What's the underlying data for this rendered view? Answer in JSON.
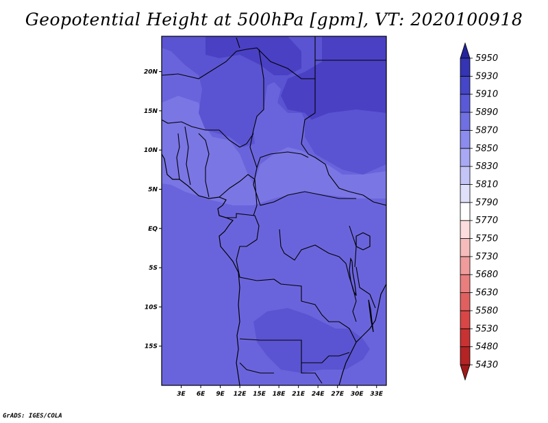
{
  "title": "Geopotential Height at 500hPa [gpm], VT: 2020100918",
  "credit": "GrADS: IGES/COLA",
  "map": {
    "lon_range": [
      0,
      34.5
    ],
    "lat_range": [
      -20,
      24.5
    ],
    "lon_ticks": [
      {
        "value": 3,
        "label": "3E"
      },
      {
        "value": 6,
        "label": "6E"
      },
      {
        "value": 9,
        "label": "9E"
      },
      {
        "value": 12,
        "label": "12E"
      },
      {
        "value": 15,
        "label": "15E"
      },
      {
        "value": 18,
        "label": "18E"
      },
      {
        "value": 21,
        "label": "21E"
      },
      {
        "value": 24,
        "label": "24E"
      },
      {
        "value": 27,
        "label": "27E"
      },
      {
        "value": 30,
        "label": "30E"
      },
      {
        "value": 33,
        "label": "33E"
      }
    ],
    "lat_ticks": [
      {
        "value": 20,
        "label": "20N"
      },
      {
        "value": 15,
        "label": "15N"
      },
      {
        "value": 10,
        "label": "10N"
      },
      {
        "value": 5,
        "label": "5N"
      },
      {
        "value": 0,
        "label": "EQ"
      },
      {
        "value": -5,
        "label": "5S"
      },
      {
        "value": -10,
        "label": "10S"
      },
      {
        "value": -15,
        "label": "15S"
      }
    ]
  },
  "colorbar": {
    "levels": [
      "5430",
      "5480",
      "5530",
      "5580",
      "5630",
      "5680",
      "5730",
      "5750",
      "5770",
      "5790",
      "5810",
      "5830",
      "5850",
      "5870",
      "5890",
      "5910",
      "5930",
      "5950"
    ],
    "colors": [
      "#a01a1a",
      "#b42424",
      "#c83232",
      "#d84646",
      "#e06060",
      "#e87e7e",
      "#f09c9c",
      "#f6bcbc",
      "#fcdcdc",
      "#ffffff",
      "#e0e0fa",
      "#c4c4f6",
      "#a8a8f4",
      "#8c8cee",
      "#7070e2",
      "#5a5ad8",
      "#4646c8",
      "#3434b4",
      "#24249c"
    ]
  },
  "fill_colors": {
    "base": "#6a64dc",
    "mid": "#5a54d2",
    "high": "#4a40c4",
    "light": "#7a76e4"
  }
}
